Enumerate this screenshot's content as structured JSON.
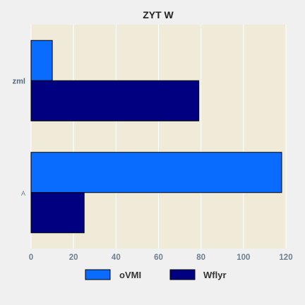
{
  "chart_data": {
    "type": "bar",
    "orientation": "horizontal",
    "title": "ZYT W",
    "categories": [
      "zml",
      "A"
    ],
    "series": [
      {
        "name": "oVMI",
        "values": [
          10,
          118
        ],
        "color": "#0a6bff"
      },
      {
        "name": "Wflyr",
        "values": [
          79,
          25
        ],
        "color": "#000080"
      }
    ],
    "xlim": [
      0,
      120
    ],
    "xticks": [
      "0",
      "20",
      "40",
      "60",
      "80",
      "100",
      "120"
    ],
    "grid": true,
    "legend": "bottom-center",
    "plot_background": "#f0ead8"
  }
}
